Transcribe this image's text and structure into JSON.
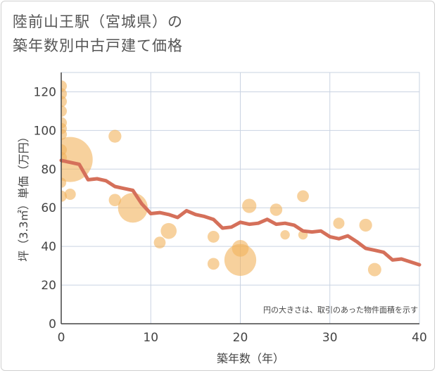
{
  "title_line1": "陸前山王駅（宮城県）の",
  "title_line2": "築年数別中古戸建て価格",
  "chart_data": {
    "type": "scatter",
    "title": "陸前山王駅（宮城県）の 築年数別中古戸建て価格",
    "xlabel": "築年数（年）",
    "ylabel": "坪（3.3㎡）単価（万円）",
    "xlim": [
      0,
      40
    ],
    "ylim": [
      0,
      130
    ],
    "xticks": [
      "0",
      "10",
      "20",
      "30",
      "40"
    ],
    "yticks": [
      "0",
      "20",
      "40",
      "60",
      "80",
      "100",
      "120"
    ],
    "grid": true,
    "annotation": "円の大きさは、取引のあった物件面積を示す",
    "colors": {
      "bubble": "#f2b25c",
      "line": "#d5705a",
      "grid": "#c9d3e2"
    },
    "bubbles": [
      {
        "x": 0,
        "y": 123,
        "size": 1
      },
      {
        "x": 0,
        "y": 119,
        "size": 1
      },
      {
        "x": 0,
        "y": 115,
        "size": 1
      },
      {
        "x": 0,
        "y": 110,
        "size": 1
      },
      {
        "x": 0,
        "y": 104,
        "size": 1
      },
      {
        "x": 0,
        "y": 101,
        "size": 1
      },
      {
        "x": 0,
        "y": 98,
        "size": 1
      },
      {
        "x": 0,
        "y": 90,
        "size": 1
      },
      {
        "x": 0,
        "y": 86,
        "size": 1
      },
      {
        "x": 0,
        "y": 73,
        "size": 0.8
      },
      {
        "x": 0,
        "y": 66,
        "size": 1
      },
      {
        "x": 1,
        "y": 85,
        "size": 16
      },
      {
        "x": 1,
        "y": 67,
        "size": 1
      },
      {
        "x": 6,
        "y": 97,
        "size": 1.3
      },
      {
        "x": 6,
        "y": 64,
        "size": 1.2
      },
      {
        "x": 8,
        "y": 60,
        "size": 7
      },
      {
        "x": 11,
        "y": 42,
        "size": 1.1
      },
      {
        "x": 12,
        "y": 48,
        "size": 2
      },
      {
        "x": 17,
        "y": 45,
        "size": 1.1
      },
      {
        "x": 17,
        "y": 31,
        "size": 1.1
      },
      {
        "x": 20,
        "y": 39,
        "size": 2.2
      },
      {
        "x": 20,
        "y": 33,
        "size": 8
      },
      {
        "x": 21,
        "y": 61,
        "size": 1.6
      },
      {
        "x": 24,
        "y": 59,
        "size": 1.2
      },
      {
        "x": 25,
        "y": 46,
        "size": 0.7
      },
      {
        "x": 27,
        "y": 66,
        "size": 1.1
      },
      {
        "x": 27,
        "y": 46,
        "size": 0.7
      },
      {
        "x": 31,
        "y": 52,
        "size": 1
      },
      {
        "x": 34,
        "y": 51,
        "size": 1.3
      },
      {
        "x": 35,
        "y": 28,
        "size": 1.4
      }
    ],
    "series": [
      {
        "type": "line",
        "x": [
          0,
          1,
          2,
          3,
          4,
          5,
          6,
          7,
          8,
          9,
          10,
          11,
          12,
          13,
          14,
          15,
          16,
          17,
          18,
          19,
          20,
          21,
          22,
          23,
          24,
          25,
          26,
          27,
          28,
          29,
          30,
          31,
          32,
          33,
          34,
          35,
          36,
          37,
          38,
          39,
          40
        ],
        "values": [
          84.5,
          83.5,
          82.5,
          74.5,
          75,
          74,
          71,
          70,
          69,
          62,
          57,
          57.5,
          56.5,
          55,
          58.5,
          56.5,
          55.5,
          54,
          49.5,
          50,
          52.5,
          51.5,
          52,
          54,
          51.5,
          52,
          51,
          48,
          47.5,
          48,
          45,
          44,
          45.5,
          42.5,
          39,
          38,
          37,
          33,
          33.5,
          32,
          30.5
        ]
      }
    ]
  }
}
